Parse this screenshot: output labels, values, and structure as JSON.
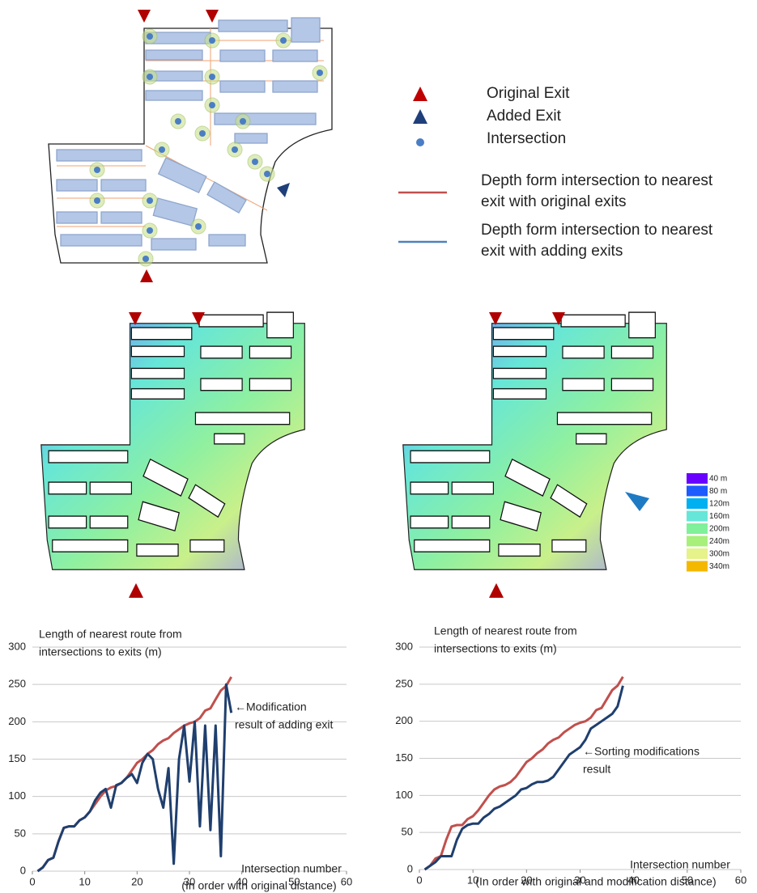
{
  "figure_legend": [
    {
      "lines": [
        "Original Exit"
      ],
      "kind": "triangle",
      "color": "#c00000"
    },
    {
      "lines": [
        "Added Exit"
      ],
      "kind": "triangle",
      "color": "#1f3f7a"
    },
    {
      "lines": [
        "Intersection"
      ],
      "kind": "dot",
      "color": "#4a7ec4"
    },
    {
      "lines": [
        "Depth form intersection to nearest",
        "exit with original exits"
      ],
      "kind": "line",
      "color": "#c0504d"
    },
    {
      "lines": [
        "Depth form intersection to nearest",
        "exit with adding exits"
      ],
      "kind": "line",
      "color": "#4f81bd"
    }
  ],
  "color_scale": [
    {
      "label": "40 m",
      "color": "#6a00ff"
    },
    {
      "label": "80 m",
      "color": "#1e5bff"
    },
    {
      "label": "120m",
      "color": "#00b0f0"
    },
    {
      "label": "160m",
      "color": "#66e6d8"
    },
    {
      "label": "200m",
      "color": "#80f09a"
    },
    {
      "label": "240m",
      "color": "#a8f07c"
    },
    {
      "label": "300m",
      "color": "#e6f28a"
    },
    {
      "label": "340m",
      "color": "#f5b800"
    }
  ],
  "chart_data": [
    {
      "type": "line",
      "y_label": [
        "Length of nearest route from",
        "intersections to exits (m)"
      ],
      "x_label": [
        "Intersection number",
        "(In order with original distance)"
      ],
      "annotation": [
        "←Modification",
        "result of adding exit"
      ],
      "x": [
        1,
        2,
        3,
        4,
        5,
        6,
        7,
        8,
        9,
        10,
        11,
        12,
        13,
        14,
        15,
        16,
        17,
        18,
        19,
        20,
        21,
        22,
        23,
        24,
        25,
        26,
        27,
        28,
        29,
        30,
        31,
        32,
        33,
        34,
        35,
        36,
        37,
        38
      ],
      "series": [
        {
          "color": "#c0504d",
          "values": [
            0,
            5,
            15,
            18,
            40,
            58,
            60,
            60,
            68,
            72,
            80,
            90,
            100,
            108,
            112,
            114,
            118,
            125,
            135,
            145,
            150,
            157,
            162,
            170,
            175,
            178,
            185,
            190,
            195,
            198,
            200,
            205,
            215,
            218,
            230,
            242,
            248,
            260
          ]
        },
        {
          "color": "#1f3f6e",
          "values": [
            0,
            5,
            15,
            18,
            40,
            58,
            60,
            60,
            68,
            72,
            80,
            95,
            105,
            110,
            85,
            115,
            118,
            125,
            130,
            118,
            145,
            157,
            150,
            110,
            85,
            138,
            10,
            150,
            195,
            120,
            200,
            60,
            195,
            55,
            195,
            20,
            250,
            212
          ]
        }
      ],
      "xlim": [
        0,
        60
      ],
      "xticks": [
        0,
        10,
        20,
        30,
        40,
        50,
        60
      ],
      "ylim": [
        0,
        300
      ],
      "yticks": [
        0,
        50,
        100,
        150,
        200,
        250,
        300
      ],
      "grid": true
    },
    {
      "type": "line",
      "y_label": [
        "Length of nearest route from",
        "intersections to exits (m)"
      ],
      "x_label": [
        "Intersection number",
        "(In order with original and modification distance)"
      ],
      "annotation": [
        "←Sorting modifications",
        "result"
      ],
      "x": [
        1,
        2,
        3,
        4,
        5,
        6,
        7,
        8,
        9,
        10,
        11,
        12,
        13,
        14,
        15,
        16,
        17,
        18,
        19,
        20,
        21,
        22,
        23,
        24,
        25,
        26,
        27,
        28,
        29,
        30,
        31,
        32,
        33,
        34,
        35,
        36,
        37,
        38
      ],
      "series": [
        {
          "color": "#c0504d",
          "values": [
            0,
            5,
            15,
            18,
            40,
            58,
            60,
            60,
            68,
            72,
            80,
            90,
            100,
            108,
            112,
            114,
            118,
            125,
            135,
            145,
            150,
            157,
            162,
            170,
            175,
            178,
            185,
            190,
            195,
            198,
            200,
            205,
            215,
            218,
            230,
            242,
            248,
            260
          ]
        },
        {
          "color": "#1f3f6e",
          "values": [
            0,
            5,
            10,
            18,
            18,
            18,
            40,
            55,
            60,
            62,
            62,
            70,
            75,
            82,
            85,
            90,
            95,
            100,
            108,
            110,
            115,
            118,
            118,
            120,
            125,
            135,
            145,
            155,
            160,
            165,
            175,
            190,
            195,
            200,
            205,
            210,
            220,
            248
          ]
        }
      ],
      "xlim": [
        0,
        60
      ],
      "xticks": [
        0,
        10,
        20,
        30,
        40,
        50,
        60
      ],
      "ylim": [
        0,
        300
      ],
      "yticks": [
        0,
        50,
        100,
        150,
        200,
        250,
        300
      ],
      "grid": true
    }
  ]
}
